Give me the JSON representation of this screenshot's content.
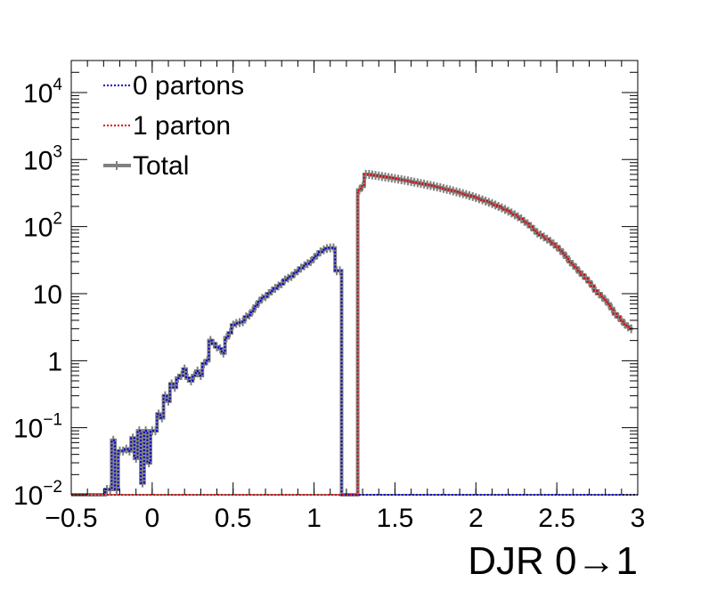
{
  "chart_data": {
    "type": "line",
    "xlabel": "DJR 0→1",
    "ylabel": "",
    "title": "",
    "xlim": [
      -0.5,
      3.0
    ],
    "ylim": [
      0.01,
      30000
    ],
    "yscale": "log",
    "grid": false,
    "legend_position": "top-left",
    "x_ticks": [
      -0.5,
      0,
      0.5,
      1,
      1.5,
      2,
      2.5,
      3
    ],
    "x_tick_labels": [
      "−0.5",
      "0",
      "0.5",
      "1",
      "1.5",
      "2",
      "2.5",
      "3"
    ],
    "y_ticks": [
      {
        "value": 0.01,
        "base": "10",
        "exp": "−2"
      },
      {
        "value": 0.1,
        "base": "10",
        "exp": "−1"
      },
      {
        "value": 1,
        "base": "1",
        "exp": ""
      },
      {
        "value": 10,
        "base": "10",
        "exp": ""
      },
      {
        "value": 100,
        "base": "10",
        "exp": "2"
      },
      {
        "value": 1000,
        "base": "10",
        "exp": "3"
      },
      {
        "value": 10000,
        "base": "10",
        "exp": "4"
      }
    ],
    "bin_edges": [
      -0.5,
      -0.43,
      -0.36,
      -0.29,
      -0.27,
      -0.25,
      -0.23,
      -0.21,
      -0.19,
      -0.17,
      -0.15,
      -0.13,
      -0.11,
      -0.09,
      -0.07,
      -0.05,
      -0.03,
      -0.01,
      0.01,
      0.03,
      0.05,
      0.07,
      0.09,
      0.11,
      0.13,
      0.15,
      0.17,
      0.19,
      0.21,
      0.23,
      0.25,
      0.27,
      0.29,
      0.31,
      0.33,
      0.35,
      0.37,
      0.39,
      0.41,
      0.43,
      0.45,
      0.47,
      0.49,
      0.51,
      0.53,
      0.55,
      0.57,
      0.59,
      0.61,
      0.63,
      0.65,
      0.67,
      0.69,
      0.71,
      0.73,
      0.75,
      0.77,
      0.79,
      0.81,
      0.83,
      0.85,
      0.87,
      0.89,
      0.91,
      0.93,
      0.95,
      0.97,
      0.99,
      1.01,
      1.03,
      1.05,
      1.07,
      1.09,
      1.11,
      1.13,
      1.15,
      1.17,
      1.19,
      1.21,
      1.23,
      1.25,
      1.27,
      1.29,
      1.31,
      1.33,
      1.35,
      1.37,
      1.39,
      1.41,
      1.43,
      1.45,
      1.47,
      1.49,
      1.51,
      1.53,
      1.55,
      1.57,
      1.59,
      1.61,
      1.63,
      1.65,
      1.67,
      1.69,
      1.71,
      1.73,
      1.75,
      1.77,
      1.79,
      1.81,
      1.83,
      1.85,
      1.87,
      1.89,
      1.91,
      1.93,
      1.95,
      1.97,
      1.99,
      2.01,
      2.03,
      2.05,
      2.07,
      2.09,
      2.11,
      2.13,
      2.15,
      2.17,
      2.19,
      2.21,
      2.23,
      2.25,
      2.27,
      2.29,
      2.31,
      2.33,
      2.35,
      2.37,
      2.39,
      2.41,
      2.43,
      2.45,
      2.47,
      2.49,
      2.51,
      2.53,
      2.55,
      2.57,
      2.59,
      2.61,
      2.63,
      2.65,
      2.67,
      2.69,
      2.71,
      2.73,
      2.75,
      2.77,
      2.79,
      2.81,
      2.83,
      2.85,
      2.87,
      2.89,
      2.91,
      2.93,
      2.95,
      2.97,
      3.0
    ],
    "series": [
      {
        "name": "0 partons",
        "color": "#0000cc",
        "style": "dotted",
        "values": [
          0.01,
          0.01,
          0.01,
          0.012,
          0.012,
          0.065,
          0.012,
          0.045,
          0.045,
          0.048,
          0.045,
          0.07,
          0.035,
          0.09,
          0.015,
          0.09,
          0.03,
          0.09,
          0.09,
          0.16,
          0.14,
          0.3,
          0.25,
          0.45,
          0.4,
          0.55,
          0.6,
          0.75,
          0.55,
          0.5,
          0.6,
          0.7,
          0.6,
          0.9,
          1.0,
          2.0,
          1.8,
          1.6,
          1.5,
          1.3,
          2.2,
          2.6,
          3.4,
          3.6,
          3.7,
          3.8,
          4.5,
          4.8,
          5.5,
          6.5,
          7.5,
          8.5,
          9.0,
          10.0,
          11.0,
          12.0,
          13.0,
          14.0,
          16.0,
          17.0,
          18.0,
          20.0,
          22.0,
          24.0,
          26.0,
          28.0,
          30.0,
          34.0,
          38.0,
          42.0,
          45.0,
          47.0,
          48.0,
          48.0,
          22.0,
          22.0,
          0.01,
          0.01,
          0.01,
          0.01,
          0.01,
          0.01,
          0.01,
          0.01,
          0.01,
          0.01,
          0.01,
          0.01,
          0.01,
          0.01,
          0.01,
          0.01,
          0.01,
          0.01,
          0.01,
          0.01,
          0.01,
          0.01,
          0.01,
          0.01,
          0.01,
          0.01,
          0.01,
          0.01,
          0.01,
          0.01,
          0.01,
          0.01,
          0.01,
          0.01,
          0.01,
          0.01,
          0.01,
          0.01,
          0.01,
          0.01,
          0.01,
          0.01,
          0.01,
          0.01,
          0.01,
          0.01,
          0.01,
          0.01,
          0.01,
          0.01,
          0.01,
          0.01,
          0.01,
          0.01,
          0.01,
          0.01,
          0.01,
          0.01,
          0.01,
          0.01,
          0.01,
          0.01,
          0.01,
          0.01,
          0.01,
          0.01,
          0.01,
          0.01,
          0.01,
          0.01,
          0.01,
          0.01,
          0.01,
          0.01,
          0.01,
          0.01,
          0.01,
          0.01,
          0.01,
          0.01,
          0.01,
          0.01,
          0.01,
          0.01,
          0.01,
          0.01,
          0.01,
          0.01,
          0.01,
          0.01,
          0.01,
          0.01
        ]
      },
      {
        "name": "1 parton",
        "color": "#dd0000",
        "style": "dotted",
        "values": [
          0.01,
          0.01,
          0.01,
          0.01,
          0.01,
          0.01,
          0.01,
          0.01,
          0.01,
          0.01,
          0.01,
          0.01,
          0.01,
          0.01,
          0.01,
          0.01,
          0.01,
          0.01,
          0.01,
          0.01,
          0.01,
          0.01,
          0.01,
          0.01,
          0.01,
          0.01,
          0.01,
          0.01,
          0.01,
          0.01,
          0.01,
          0.01,
          0.01,
          0.01,
          0.01,
          0.01,
          0.01,
          0.01,
          0.01,
          0.01,
          0.01,
          0.01,
          0.01,
          0.01,
          0.01,
          0.01,
          0.01,
          0.01,
          0.01,
          0.01,
          0.01,
          0.01,
          0.01,
          0.01,
          0.01,
          0.01,
          0.01,
          0.01,
          0.01,
          0.01,
          0.01,
          0.01,
          0.01,
          0.01,
          0.01,
          0.01,
          0.01,
          0.01,
          0.01,
          0.01,
          0.01,
          0.01,
          0.01,
          0.01,
          0.01,
          0.01,
          0.01,
          0.01,
          0.01,
          0.01,
          0.01,
          350,
          400,
          600,
          600,
          590,
          580,
          570,
          560,
          550,
          540,
          530,
          520,
          510,
          500,
          490,
          480,
          470,
          460,
          450,
          440,
          430,
          420,
          410,
          400,
          390,
          380,
          370,
          360,
          350,
          340,
          330,
          320,
          310,
          300,
          290,
          280,
          270,
          260,
          250,
          240,
          230,
          220,
          210,
          200,
          190,
          180,
          170,
          160,
          150,
          140,
          130,
          120,
          110,
          100,
          90,
          80,
          75,
          70,
          65,
          60,
          55,
          50,
          45,
          40,
          35,
          30,
          27,
          24,
          21,
          19,
          17,
          15,
          13,
          11,
          10,
          9,
          8,
          7,
          6,
          5,
          4.5,
          4,
          3.5,
          3.2,
          3.0
        ]
      },
      {
        "name": "Total",
        "color": "#808080",
        "style": "solid",
        "values": [
          0.01,
          0.01,
          0.01,
          0.012,
          0.012,
          0.065,
          0.012,
          0.045,
          0.045,
          0.048,
          0.045,
          0.07,
          0.035,
          0.09,
          0.015,
          0.09,
          0.03,
          0.09,
          0.09,
          0.16,
          0.14,
          0.3,
          0.25,
          0.45,
          0.4,
          0.55,
          0.6,
          0.75,
          0.55,
          0.5,
          0.6,
          0.7,
          0.6,
          0.9,
          1.0,
          2.0,
          1.8,
          1.6,
          1.5,
          1.3,
          2.2,
          2.6,
          3.4,
          3.6,
          3.7,
          3.8,
          4.5,
          4.8,
          5.5,
          6.5,
          7.5,
          8.5,
          9.0,
          10.0,
          11.0,
          12.0,
          13.0,
          14.0,
          16.0,
          17.0,
          18.0,
          20.0,
          22.0,
          24.0,
          26.0,
          28.0,
          30.0,
          34.0,
          38.0,
          42.0,
          45.0,
          47.0,
          48.0,
          48.0,
          22.0,
          22.0,
          0.01,
          0.01,
          0.01,
          0.01,
          0.01,
          350,
          400,
          600,
          600,
          590,
          580,
          570,
          560,
          550,
          540,
          530,
          520,
          510,
          500,
          490,
          480,
          470,
          460,
          450,
          440,
          430,
          420,
          410,
          400,
          390,
          380,
          370,
          360,
          350,
          340,
          330,
          320,
          310,
          300,
          290,
          280,
          270,
          260,
          250,
          240,
          230,
          220,
          210,
          200,
          190,
          180,
          170,
          160,
          150,
          140,
          130,
          120,
          110,
          100,
          90,
          80,
          75,
          70,
          65,
          60,
          55,
          50,
          45,
          40,
          35,
          30,
          27,
          24,
          21,
          19,
          17,
          15,
          13,
          11,
          10,
          9,
          8,
          7,
          6,
          5,
          4.5,
          4,
          3.5,
          3.2,
          3.0
        ]
      }
    ],
    "legend": [
      {
        "label": "0 partons",
        "color": "#0000cc",
        "style": "dotted"
      },
      {
        "label": "1 parton",
        "color": "#dd0000",
        "style": "dotted"
      },
      {
        "label": "Total",
        "color": "#808080",
        "style": "solid"
      }
    ]
  }
}
